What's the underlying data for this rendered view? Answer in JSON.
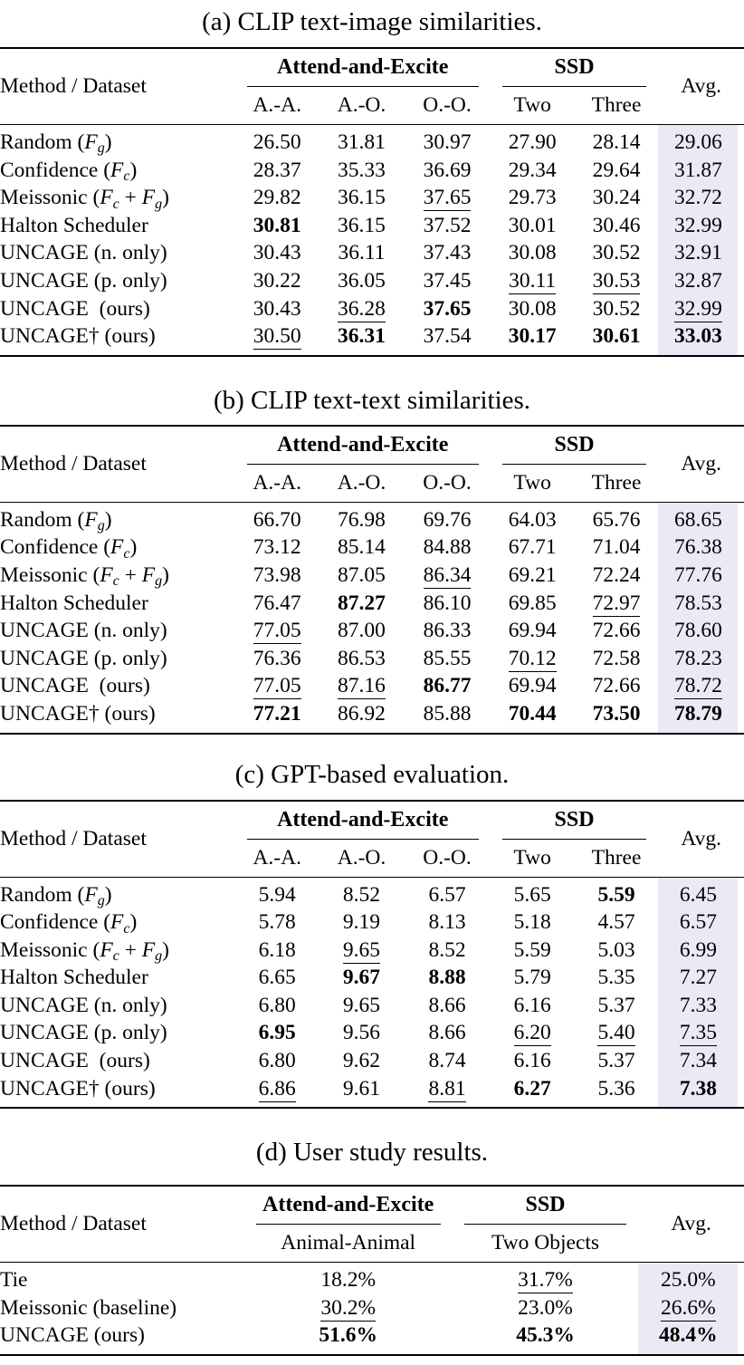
{
  "style": {
    "highlight_color": "#eaeaf6",
    "rule_color": "#000000",
    "text_color": "#000000",
    "background_color": "#ffffff"
  },
  "tables": [
    {
      "caption": "(a) CLIP text-image similarities.",
      "stub_header": "Method / Dataset",
      "avg_header": "Avg.",
      "groups": [
        {
          "label": "Attend-and-Excite",
          "span": 3
        },
        {
          "label": "SSD",
          "span": 2
        }
      ],
      "sub_headers": [
        "A.-A.",
        "A.-O.",
        "O.-O.",
        "Two",
        "Three"
      ],
      "rows": [
        {
          "method": [
            {
              "t": "Random ("
            },
            {
              "t": "F",
              "i": true
            },
            {
              "t": "g",
              "i": true,
              "sub": true
            },
            {
              "t": ")"
            }
          ],
          "bold": false,
          "values": [
            {
              "v": "26.50"
            },
            {
              "v": "31.81"
            },
            {
              "v": "30.97"
            },
            {
              "v": "27.90"
            },
            {
              "v": "28.14"
            },
            {
              "v": "29.06"
            }
          ]
        },
        {
          "method": [
            {
              "t": "Confidence ("
            },
            {
              "t": "F",
              "i": true
            },
            {
              "t": "c",
              "i": true,
              "sub": true
            },
            {
              "t": ")"
            }
          ],
          "bold": false,
          "values": [
            {
              "v": "28.37"
            },
            {
              "v": "35.33"
            },
            {
              "v": "36.69"
            },
            {
              "v": "29.34"
            },
            {
              "v": "29.64"
            },
            {
              "v": "31.87"
            }
          ]
        },
        {
          "method": [
            {
              "t": "Meissonic ("
            },
            {
              "t": "F",
              "i": true
            },
            {
              "t": "c",
              "i": true,
              "sub": true
            },
            {
              "t": " + "
            },
            {
              "t": "F",
              "i": true
            },
            {
              "t": "g",
              "i": true,
              "sub": true
            },
            {
              "t": ")"
            }
          ],
          "bold": false,
          "values": [
            {
              "v": "29.82"
            },
            {
              "v": "36.15"
            },
            {
              "v": "37.65",
              "s": "u"
            },
            {
              "v": "29.73"
            },
            {
              "v": "30.24"
            },
            {
              "v": "32.72"
            }
          ]
        },
        {
          "method": [
            {
              "t": "Halton Scheduler"
            }
          ],
          "bold": false,
          "values": [
            {
              "v": "30.81",
              "s": "b"
            },
            {
              "v": "36.15"
            },
            {
              "v": "37.52"
            },
            {
              "v": "30.01"
            },
            {
              "v": "30.46"
            },
            {
              "v": "32.99"
            }
          ]
        },
        {
          "method": [
            {
              "t": "UNCAGE (n. only)"
            }
          ],
          "bold": false,
          "values": [
            {
              "v": "30.43"
            },
            {
              "v": "36.11"
            },
            {
              "v": "37.43"
            },
            {
              "v": "30.08"
            },
            {
              "v": "30.52"
            },
            {
              "v": "32.91"
            }
          ]
        },
        {
          "method": [
            {
              "t": "UNCAGE (p. only)"
            }
          ],
          "bold": false,
          "values": [
            {
              "v": "30.22"
            },
            {
              "v": "36.05"
            },
            {
              "v": "37.45"
            },
            {
              "v": "30.11",
              "s": "u"
            },
            {
              "v": "30.53",
              "s": "u"
            },
            {
              "v": "32.87"
            }
          ]
        },
        {
          "method": [
            {
              "t": "UNCAGE (ours)"
            }
          ],
          "bold": true,
          "values": [
            {
              "v": "30.43"
            },
            {
              "v": "36.28",
              "s": "u"
            },
            {
              "v": "37.65",
              "s": "b"
            },
            {
              "v": "30.08"
            },
            {
              "v": "30.52"
            },
            {
              "v": "32.99",
              "s": "u"
            }
          ]
        },
        {
          "method": [
            {
              "t": "UNCAGE† (ours)"
            }
          ],
          "bold": true,
          "values": [
            {
              "v": "30.50",
              "s": "u"
            },
            {
              "v": "36.31",
              "s": "b"
            },
            {
              "v": "37.54"
            },
            {
              "v": "30.17",
              "s": "b"
            },
            {
              "v": "30.61",
              "s": "b"
            },
            {
              "v": "33.03",
              "s": "b"
            }
          ]
        }
      ]
    },
    {
      "caption": "(b) CLIP text-text similarities.",
      "stub_header": "Method / Dataset",
      "avg_header": "Avg.",
      "groups": [
        {
          "label": "Attend-and-Excite",
          "span": 3
        },
        {
          "label": "SSD",
          "span": 2
        }
      ],
      "sub_headers": [
        "A.-A.",
        "A.-O.",
        "O.-O.",
        "Two",
        "Three"
      ],
      "rows": [
        {
          "method": [
            {
              "t": "Random ("
            },
            {
              "t": "F",
              "i": true
            },
            {
              "t": "g",
              "i": true,
              "sub": true
            },
            {
              "t": ")"
            }
          ],
          "bold": false,
          "values": [
            {
              "v": "66.70"
            },
            {
              "v": "76.98"
            },
            {
              "v": "69.76"
            },
            {
              "v": "64.03"
            },
            {
              "v": "65.76"
            },
            {
              "v": "68.65"
            }
          ]
        },
        {
          "method": [
            {
              "t": "Confidence ("
            },
            {
              "t": "F",
              "i": true
            },
            {
              "t": "c",
              "i": true,
              "sub": true
            },
            {
              "t": ")"
            }
          ],
          "bold": false,
          "values": [
            {
              "v": "73.12"
            },
            {
              "v": "85.14"
            },
            {
              "v": "84.88"
            },
            {
              "v": "67.71"
            },
            {
              "v": "71.04"
            },
            {
              "v": "76.38"
            }
          ]
        },
        {
          "method": [
            {
              "t": "Meissonic ("
            },
            {
              "t": "F",
              "i": true
            },
            {
              "t": "c",
              "i": true,
              "sub": true
            },
            {
              "t": " + "
            },
            {
              "t": "F",
              "i": true
            },
            {
              "t": "g",
              "i": true,
              "sub": true
            },
            {
              "t": ")"
            }
          ],
          "bold": false,
          "values": [
            {
              "v": "73.98"
            },
            {
              "v": "87.05"
            },
            {
              "v": "86.34",
              "s": "u"
            },
            {
              "v": "69.21"
            },
            {
              "v": "72.24"
            },
            {
              "v": "77.76"
            }
          ]
        },
        {
          "method": [
            {
              "t": "Halton Scheduler"
            }
          ],
          "bold": false,
          "values": [
            {
              "v": "76.47"
            },
            {
              "v": "87.27",
              "s": "b"
            },
            {
              "v": "86.10"
            },
            {
              "v": "69.85"
            },
            {
              "v": "72.97",
              "s": "u"
            },
            {
              "v": "78.53"
            }
          ]
        },
        {
          "method": [
            {
              "t": "UNCAGE (n. only)"
            }
          ],
          "bold": false,
          "values": [
            {
              "v": "77.05",
              "s": "u"
            },
            {
              "v": "87.00"
            },
            {
              "v": "86.33"
            },
            {
              "v": "69.94"
            },
            {
              "v": "72.66"
            },
            {
              "v": "78.60"
            }
          ]
        },
        {
          "method": [
            {
              "t": "UNCAGE (p. only)"
            }
          ],
          "bold": false,
          "values": [
            {
              "v": "76.36"
            },
            {
              "v": "86.53"
            },
            {
              "v": "85.55"
            },
            {
              "v": "70.12",
              "s": "u"
            },
            {
              "v": "72.58"
            },
            {
              "v": "78.23"
            }
          ]
        },
        {
          "method": [
            {
              "t": "UNCAGE (ours)"
            }
          ],
          "bold": true,
          "values": [
            {
              "v": "77.05",
              "s": "u"
            },
            {
              "v": "87.16",
              "s": "u"
            },
            {
              "v": "86.77",
              "s": "b"
            },
            {
              "v": "69.94"
            },
            {
              "v": "72.66"
            },
            {
              "v": "78.72",
              "s": "u"
            }
          ]
        },
        {
          "method": [
            {
              "t": "UNCAGE† (ours)"
            }
          ],
          "bold": true,
          "values": [
            {
              "v": "77.21",
              "s": "b"
            },
            {
              "v": "86.92"
            },
            {
              "v": "85.88"
            },
            {
              "v": "70.44",
              "s": "b"
            },
            {
              "v": "73.50",
              "s": "b"
            },
            {
              "v": "78.79",
              "s": "b"
            }
          ]
        }
      ]
    },
    {
      "caption": "(c) GPT-based evaluation.",
      "stub_header": "Method / Dataset",
      "avg_header": "Avg.",
      "groups": [
        {
          "label": "Attend-and-Excite",
          "span": 3
        },
        {
          "label": "SSD",
          "span": 2
        }
      ],
      "sub_headers": [
        "A.-A.",
        "A.-O.",
        "O.-O.",
        "Two",
        "Three"
      ],
      "rows": [
        {
          "method": [
            {
              "t": "Random ("
            },
            {
              "t": "F",
              "i": true
            },
            {
              "t": "g",
              "i": true,
              "sub": true
            },
            {
              "t": ")"
            }
          ],
          "bold": false,
          "values": [
            {
              "v": "5.94"
            },
            {
              "v": "8.52"
            },
            {
              "v": "6.57"
            },
            {
              "v": "5.65"
            },
            {
              "v": "5.59",
              "s": "b"
            },
            {
              "v": "6.45"
            }
          ]
        },
        {
          "method": [
            {
              "t": "Confidence ("
            },
            {
              "t": "F",
              "i": true
            },
            {
              "t": "c",
              "i": true,
              "sub": true
            },
            {
              "t": ")"
            }
          ],
          "bold": false,
          "values": [
            {
              "v": "5.78"
            },
            {
              "v": "9.19"
            },
            {
              "v": "8.13"
            },
            {
              "v": "5.18"
            },
            {
              "v": "4.57"
            },
            {
              "v": "6.57"
            }
          ]
        },
        {
          "method": [
            {
              "t": "Meissonic ("
            },
            {
              "t": "F",
              "i": true
            },
            {
              "t": "c",
              "i": true,
              "sub": true
            },
            {
              "t": " + "
            },
            {
              "t": "F",
              "i": true
            },
            {
              "t": "g",
              "i": true,
              "sub": true
            },
            {
              "t": ")"
            }
          ],
          "bold": false,
          "values": [
            {
              "v": "6.18"
            },
            {
              "v": "9.65",
              "s": "u"
            },
            {
              "v": "8.52"
            },
            {
              "v": "5.59"
            },
            {
              "v": "5.03"
            },
            {
              "v": "6.99"
            }
          ]
        },
        {
          "method": [
            {
              "t": "Halton Scheduler"
            }
          ],
          "bold": false,
          "values": [
            {
              "v": "6.65"
            },
            {
              "v": "9.67",
              "s": "b"
            },
            {
              "v": "8.88",
              "s": "b"
            },
            {
              "v": "5.79"
            },
            {
              "v": "5.35"
            },
            {
              "v": "7.27"
            }
          ]
        },
        {
          "method": [
            {
              "t": "UNCAGE (n. only)"
            }
          ],
          "bold": false,
          "values": [
            {
              "v": "6.80"
            },
            {
              "v": "9.65"
            },
            {
              "v": "8.66"
            },
            {
              "v": "6.16"
            },
            {
              "v": "5.37"
            },
            {
              "v": "7.33"
            }
          ]
        },
        {
          "method": [
            {
              "t": "UNCAGE (p. only)"
            }
          ],
          "bold": false,
          "values": [
            {
              "v": "6.95",
              "s": "b"
            },
            {
              "v": "9.56"
            },
            {
              "v": "8.66"
            },
            {
              "v": "6.20",
              "s": "u"
            },
            {
              "v": "5.40",
              "s": "u"
            },
            {
              "v": "7.35",
              "s": "u"
            }
          ]
        },
        {
          "method": [
            {
              "t": "UNCAGE (ours)"
            }
          ],
          "bold": true,
          "values": [
            {
              "v": "6.80"
            },
            {
              "v": "9.62"
            },
            {
              "v": "8.74"
            },
            {
              "v": "6.16"
            },
            {
              "v": "5.37"
            },
            {
              "v": "7.34"
            }
          ]
        },
        {
          "method": [
            {
              "t": "UNCAGE† (ours)"
            }
          ],
          "bold": true,
          "values": [
            {
              "v": "6.86",
              "s": "u"
            },
            {
              "v": "9.61"
            },
            {
              "v": "8.81",
              "s": "u"
            },
            {
              "v": "6.27",
              "s": "b"
            },
            {
              "v": "5.36"
            },
            {
              "v": "7.38",
              "s": "b"
            }
          ]
        }
      ]
    },
    {
      "caption": "(d) User study results.",
      "stub_header": "Method / Dataset",
      "avg_header": "Avg.",
      "groups": [
        {
          "label": "Attend-and-Excite",
          "span": 1
        },
        {
          "label": "SSD",
          "span": 1
        }
      ],
      "sub_headers": [
        "Animal-Animal",
        "Two Objects"
      ],
      "rows": [
        {
          "method": [
            {
              "t": "Tie"
            }
          ],
          "bold": false,
          "values": [
            {
              "v": "18.2%"
            },
            {
              "v": "31.7%",
              "s": "u"
            },
            {
              "v": "25.0%"
            }
          ]
        },
        {
          "method": [
            {
              "t": "Meissonic (baseline)"
            }
          ],
          "bold": false,
          "values": [
            {
              "v": "30.2%",
              "s": "u"
            },
            {
              "v": "23.0%"
            },
            {
              "v": "26.6%",
              "s": "u"
            }
          ]
        },
        {
          "method": [
            {
              "t": "UNCAGE (ours)"
            }
          ],
          "bold": true,
          "values": [
            {
              "v": "51.6%",
              "s": "b"
            },
            {
              "v": "45.3%",
              "s": "b"
            },
            {
              "v": "48.4%",
              "s": "b"
            }
          ]
        }
      ]
    }
  ]
}
